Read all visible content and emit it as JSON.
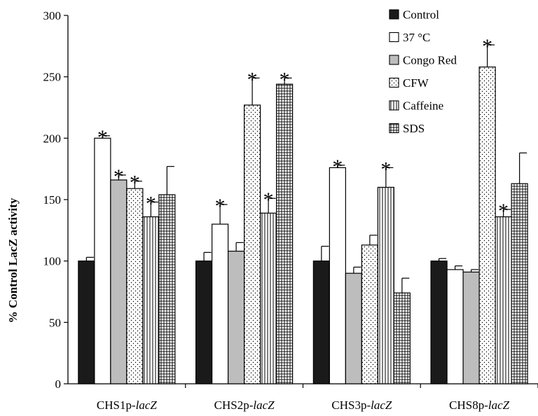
{
  "chart_data": {
    "type": "bar",
    "ylabel": "% Control LacZ activity",
    "ylim": [
      0,
      300
    ],
    "yticks": [
      0,
      50,
      100,
      150,
      200,
      250,
      300
    ],
    "categories": [
      {
        "prefix": "CHS1p-",
        "gene": "lacZ"
      },
      {
        "prefix": "CHS2p-",
        "gene": "lacZ"
      },
      {
        "prefix": "CHS3p-",
        "gene": "lacZ"
      },
      {
        "prefix": "CHS8p-",
        "gene": "lacZ"
      }
    ],
    "legend_position": "top-right",
    "series": [
      {
        "name": "Control",
        "pattern": "solid",
        "color": "#1a1a1a",
        "values": [
          100,
          100,
          100,
          100
        ],
        "errors": [
          3,
          7,
          12,
          2
        ],
        "significant": [
          false,
          false,
          false,
          false
        ]
      },
      {
        "name": "37 °C",
        "pattern": "white",
        "color": "#ffffff",
        "values": [
          200,
          130,
          176,
          93
        ],
        "errors": [
          2,
          16,
          2,
          3
        ],
        "significant": [
          true,
          true,
          true,
          false
        ]
      },
      {
        "name": "Congo Red",
        "pattern": "gray",
        "color": "#bdbdbd",
        "values": [
          166,
          108,
          90,
          91
        ],
        "errors": [
          4,
          7,
          5,
          2
        ],
        "significant": [
          true,
          false,
          false,
          false
        ]
      },
      {
        "name": "CFW",
        "pattern": "dots",
        "color": "#ffffff",
        "values": [
          159,
          227,
          113,
          258
        ],
        "errors": [
          6,
          22,
          8,
          18
        ],
        "significant": [
          true,
          true,
          false,
          true
        ]
      },
      {
        "name": "Caffeine",
        "pattern": "vlines",
        "color": "#ffffff",
        "values": [
          136,
          139,
          160,
          136
        ],
        "errors": [
          12,
          12,
          16,
          6
        ],
        "significant": [
          true,
          true,
          true,
          true
        ]
      },
      {
        "name": "SDS",
        "pattern": "grid",
        "color": "#ffffff",
        "values": [
          154,
          244,
          74,
          163
        ],
        "errors": [
          23,
          5,
          12,
          25
        ],
        "significant": [
          false,
          true,
          false,
          false
        ]
      }
    ],
    "significance_marker": "*"
  }
}
